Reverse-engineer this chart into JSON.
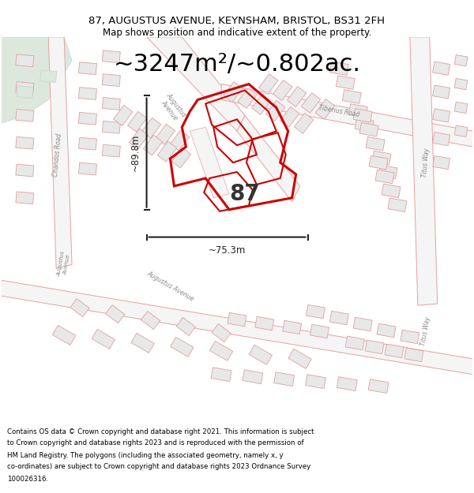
{
  "title_line1": "87, AUGUSTUS AVENUE, KEYNSHAM, BRISTOL, BS31 2FH",
  "title_line2": "Map shows position and indicative extent of the property.",
  "area_text": "~3247m²/~0.802ac.",
  "property_number": "87",
  "dimension_width": "~75.3m",
  "dimension_height": "~89.8m",
  "footer_lines": [
    "Contains OS data © Crown copyright and database right 2021. This information is subject",
    "to Crown copyright and database rights 2023 and is reproduced with the permission of",
    "HM Land Registry. The polygons (including the associated geometry, namely x, y",
    "co-ordinates) are subject to Crown copyright and database rights 2023 Ordnance Survey",
    "100026316."
  ],
  "map_bg": "#ffffff",
  "green_area_color": "#e8f0e8",
  "building_fill": "#e8e8e8",
  "building_outline": "#e0a0a0",
  "road_outline": "#e8a0a0",
  "property_color": "#cc0000",
  "property_lw": 2.2,
  "inner_building_lw": 1.5,
  "dim_line_color": "#222222",
  "text_color": "#000000",
  "road_label_color": "#888888",
  "white": "#ffffff",
  "title_fontsize": 9.5,
  "subtitle_fontsize": 8.5,
  "area_fontsize": 22,
  "num_fontsize": 20,
  "dim_fontsize": 8.5,
  "road_label_fontsize": 5.5,
  "footer_fontsize": 6.2
}
